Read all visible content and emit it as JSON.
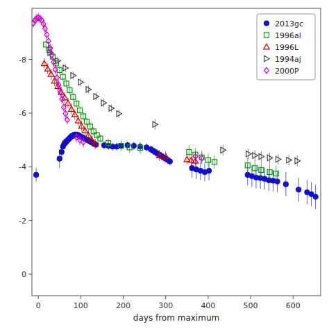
{
  "chart_data": {
    "type": "scatter",
    "xlabel": "days from maximum",
    "xlim": [
      -15,
      665
    ],
    "ylim": [
      0.8,
      -9.9
    ],
    "xticks": [
      0,
      100,
      200,
      300,
      400,
      500,
      600
    ],
    "yticks": [
      -8,
      -6,
      -4,
      -2,
      0
    ],
    "grid": false,
    "legend": "upper right",
    "series": [
      {
        "name": "2013gc",
        "color": "#1111cc",
        "marker": "circle",
        "x": [
          -5,
          50,
          55,
          58,
          61,
          64,
          67,
          70,
          73,
          76,
          79,
          82,
          85,
          88,
          91,
          94,
          97,
          100,
          103,
          106,
          109,
          112,
          115,
          118,
          121,
          124,
          127,
          130,
          133,
          136,
          155,
          165,
          175,
          185,
          195,
          210,
          225,
          240,
          255,
          265,
          270,
          275,
          280,
          285,
          290,
          295,
          300,
          305,
          310,
          362,
          372,
          382,
          392,
          402,
          493,
          503,
          513,
          523,
          533,
          543,
          553,
          563,
          583,
          613,
          633,
          643,
          653
        ],
        "values": [
          -3.7,
          -4.3,
          -4.55,
          -4.75,
          -4.85,
          -4.9,
          -4.95,
          -5.0,
          -5.05,
          -5.1,
          -5.15,
          -5.15,
          -5.2,
          -5.2,
          -5.2,
          -5.18,
          -5.15,
          -5.12,
          -5.1,
          -5.08,
          -5.05,
          -5.02,
          -5.0,
          -4.98,
          -4.95,
          -4.92,
          -4.9,
          -4.88,
          -4.85,
          -4.82,
          -4.8,
          -4.78,
          -4.75,
          -4.75,
          -4.78,
          -4.8,
          -4.78,
          -4.75,
          -4.72,
          -4.65,
          -4.6,
          -4.55,
          -4.5,
          -4.45,
          -4.4,
          -4.35,
          -4.3,
          -4.25,
          -4.2,
          -3.95,
          -3.9,
          -3.85,
          -3.8,
          -3.85,
          -3.7,
          -3.65,
          -3.6,
          -3.58,
          -3.55,
          -3.5,
          -3.48,
          -3.45,
          -3.35,
          -3.15,
          -3.05,
          -2.98,
          -2.88
        ],
        "errors": [
          0.25,
          0.35,
          0.3,
          0.25,
          0.2,
          0.18,
          0.15,
          0.15,
          0.12,
          0.12,
          0.12,
          0.12,
          0.1,
          0.1,
          0.1,
          0.1,
          0.1,
          0.1,
          0.1,
          0.1,
          0.1,
          0.1,
          0.1,
          0.1,
          0.1,
          0.1,
          0.1,
          0.1,
          0.1,
          0.1,
          0.15,
          0.15,
          0.15,
          0.15,
          0.15,
          0.15,
          0.15,
          0.15,
          0.15,
          0.15,
          0.15,
          0.15,
          0.15,
          0.15,
          0.15,
          0.15,
          0.15,
          0.15,
          0.15,
          0.35,
          0.35,
          0.35,
          0.35,
          0.35,
          0.4,
          0.4,
          0.4,
          0.4,
          0.4,
          0.4,
          0.4,
          0.4,
          0.45,
          0.45,
          0.45,
          0.45,
          0.45
        ]
      },
      {
        "name": "1996al",
        "color": "#009900",
        "marker": "square-open",
        "x": [
          18,
          26,
          34,
          42,
          50,
          58,
          66,
          74,
          82,
          90,
          98,
          106,
          114,
          122,
          130,
          138,
          146,
          165,
          195,
          215,
          240,
          355,
          370,
          385,
          400,
          415,
          493,
          510,
          525,
          545,
          560
        ],
        "values": [
          -8.55,
          -8.35,
          -8.1,
          -7.85,
          -7.6,
          -7.35,
          -7.1,
          -6.85,
          -6.6,
          -6.35,
          -6.1,
          -5.88,
          -5.68,
          -5.5,
          -5.32,
          -5.18,
          -5.05,
          -4.88,
          -4.78,
          -4.72,
          -4.7,
          -4.55,
          -4.45,
          -4.35,
          -4.25,
          -4.18,
          -4.05,
          -3.95,
          -3.88,
          -3.8,
          -3.75
        ],
        "errors": [
          0.15,
          0.15,
          0.15,
          0.15,
          0.15,
          0.15,
          0.15,
          0.15,
          0.15,
          0.15,
          0.15,
          0.15,
          0.15,
          0.15,
          0.15,
          0.15,
          0.15,
          0.18,
          0.2,
          0.2,
          0.22,
          0.25,
          0.25,
          0.25,
          0.25,
          0.25,
          0.3,
          0.3,
          0.3,
          0.3,
          0.3
        ]
      },
      {
        "name": "1996L",
        "color": "#cc0000",
        "marker": "triangle-up-open",
        "x": [
          14,
          22,
          30,
          38,
          46,
          54,
          62,
          70,
          78,
          86,
          94,
          102,
          110,
          118,
          126,
          134,
          285,
          300,
          350,
          360,
          370
        ],
        "values": [
          -7.85,
          -7.65,
          -7.45,
          -7.2,
          -7.0,
          -6.78,
          -6.58,
          -6.38,
          -6.15,
          -5.95,
          -5.72,
          -5.52,
          -5.35,
          -5.18,
          -5.0,
          -4.85,
          -4.42,
          -4.38,
          -4.28,
          -4.25,
          -4.22
        ],
        "errors": [
          0.2,
          0.2,
          0.2,
          0.2,
          0.2,
          0.2,
          0.2,
          0.2,
          0.2,
          0.2,
          0.2,
          0.2,
          0.2,
          0.2,
          0.2,
          0.2,
          0.2,
          0.2,
          0.2,
          0.2,
          0.2
        ]
      },
      {
        "name": "1994aj",
        "color": "#444444",
        "marker": "triangle-right-open",
        "x": [
          28,
          46,
          64,
          82,
          100,
          118,
          136,
          154,
          172,
          190,
          275,
          435,
          495,
          510,
          525,
          545,
          565,
          590,
          610
        ],
        "values": [
          -8.25,
          -7.95,
          -7.68,
          -7.4,
          -7.15,
          -6.88,
          -6.62,
          -6.38,
          -6.18,
          -5.98,
          -5.58,
          -4.62,
          -4.48,
          -4.42,
          -4.38,
          -4.33,
          -4.28,
          -4.25,
          -4.22
        ],
        "errors": [
          0.15,
          0.15,
          0.15,
          0.15,
          0.15,
          0.15,
          0.15,
          0.15,
          0.15,
          0.15,
          0.2,
          0.2,
          0.2,
          0.2,
          0.2,
          0.2,
          0.2,
          0.2,
          0.2
        ]
      },
      {
        "name": "2000P",
        "color": "#cc00cc",
        "marker": "diamond-open",
        "x": [
          -12,
          -8,
          -4,
          0,
          4,
          8,
          12,
          16,
          20,
          24,
          28,
          32,
          36,
          40,
          44,
          48,
          52,
          56,
          60,
          64,
          68,
          90,
          98,
          106,
          370,
          385
        ],
        "values": [
          -9.35,
          -9.45,
          -9.52,
          -9.55,
          -9.52,
          -9.45,
          -9.32,
          -9.15,
          -8.92,
          -8.68,
          -8.42,
          -8.16,
          -7.9,
          -7.62,
          -7.32,
          -7.05,
          -6.78,
          -6.52,
          -6.22,
          -5.98,
          -5.75,
          -5.1,
          -5.0,
          -4.92,
          -4.38,
          -4.32
        ],
        "errors": [
          0.18,
          0.18,
          0.18,
          0.18,
          0.18,
          0.18,
          0.18,
          0.18,
          0.18,
          0.18,
          0.18,
          0.18,
          0.18,
          0.18,
          0.18,
          0.18,
          0.18,
          0.18,
          0.18,
          0.18,
          0.18,
          0.2,
          0.2,
          0.2,
          0.2,
          0.2
        ]
      }
    ]
  }
}
